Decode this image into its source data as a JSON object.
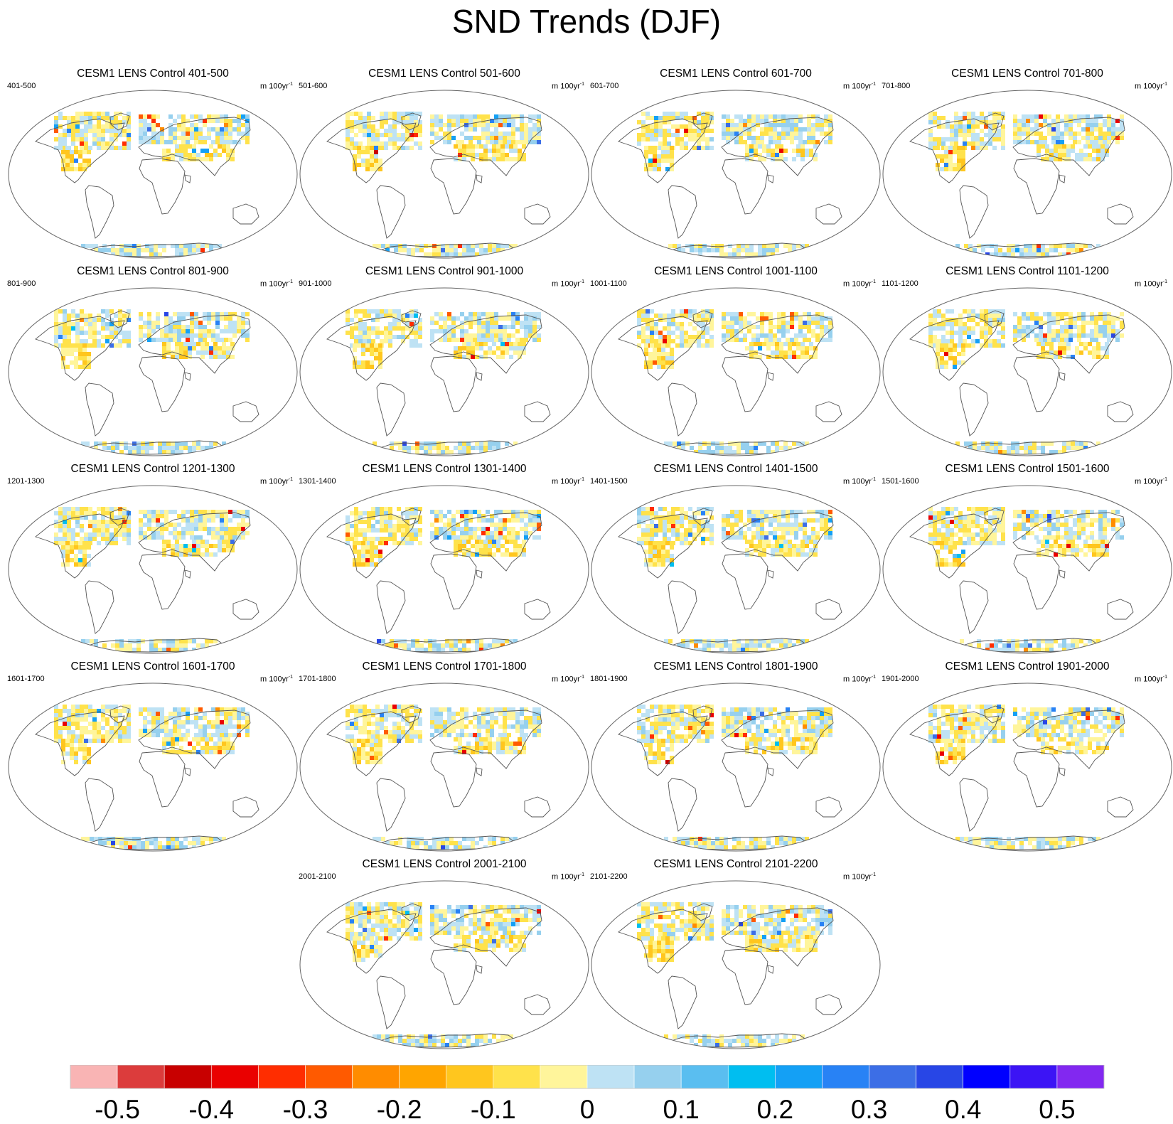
{
  "figure": {
    "title": "SND Trends (DJF)"
  },
  "chart_data": {
    "type": "heatmap",
    "title": "SND Trends (DJF)",
    "units": "m 100yr-1",
    "projection": "world map (elliptical)",
    "panels": [
      {
        "title": "CESM1 LENS Control 401-500",
        "period": "401-500"
      },
      {
        "title": "CESM1 LENS Control 501-600",
        "period": "501-600"
      },
      {
        "title": "CESM1 LENS Control 601-700",
        "period": "601-700"
      },
      {
        "title": "CESM1 LENS Control 701-800",
        "period": "701-800"
      },
      {
        "title": "CESM1 LENS Control 801-900",
        "period": "801-900"
      },
      {
        "title": "CESM1 LENS Control 901-1000",
        "period": "901-1000"
      },
      {
        "title": "CESM1 LENS Control 1001-1100",
        "period": "1001-1100"
      },
      {
        "title": "CESM1 LENS Control 1101-1200",
        "period": "1101-1200"
      },
      {
        "title": "CESM1 LENS Control 1201-1300",
        "period": "1201-1300"
      },
      {
        "title": "CESM1 LENS Control 1301-1400",
        "period": "1301-1400"
      },
      {
        "title": "CESM1 LENS Control 1401-1500",
        "period": "1401-1500"
      },
      {
        "title": "CESM1 LENS Control 1501-1600",
        "period": "1501-1600"
      },
      {
        "title": "CESM1 LENS Control 1601-1700",
        "period": "1601-1700"
      },
      {
        "title": "CESM1 LENS Control 1701-1800",
        "period": "1701-1800"
      },
      {
        "title": "CESM1 LENS Control 1801-1900",
        "period": "1801-1900"
      },
      {
        "title": "CESM1 LENS Control 1901-2000",
        "period": "1901-2000"
      },
      {
        "title": "CESM1 LENS Control 2001-2100",
        "period": "2001-2100"
      },
      {
        "title": "CESM1 LENS Control 2101-2200",
        "period": "2101-2200"
      }
    ],
    "colorbar": {
      "colors": [
        "#f9b4b4",
        "#dc3c3c",
        "#c80000",
        "#ea0000",
        "#ff2d00",
        "#ff5a00",
        "#ff8c00",
        "#ffa500",
        "#ffc61e",
        "#ffe24b",
        "#fff59b",
        "#bee2f4",
        "#96d0ee",
        "#5abef0",
        "#00bef0",
        "#14a0f5",
        "#2882f5",
        "#3c6ee6",
        "#2846e6",
        "#0000ff",
        "#3c14f5",
        "#8228f0"
      ],
      "tick_labels": [
        "-0.5",
        "-0.4",
        "-0.3",
        "-0.2",
        "-0.1",
        "0",
        "0.1",
        "0.2",
        "0.3",
        "0.4",
        "0.5"
      ],
      "range": [
        -0.55,
        0.55
      ]
    }
  }
}
